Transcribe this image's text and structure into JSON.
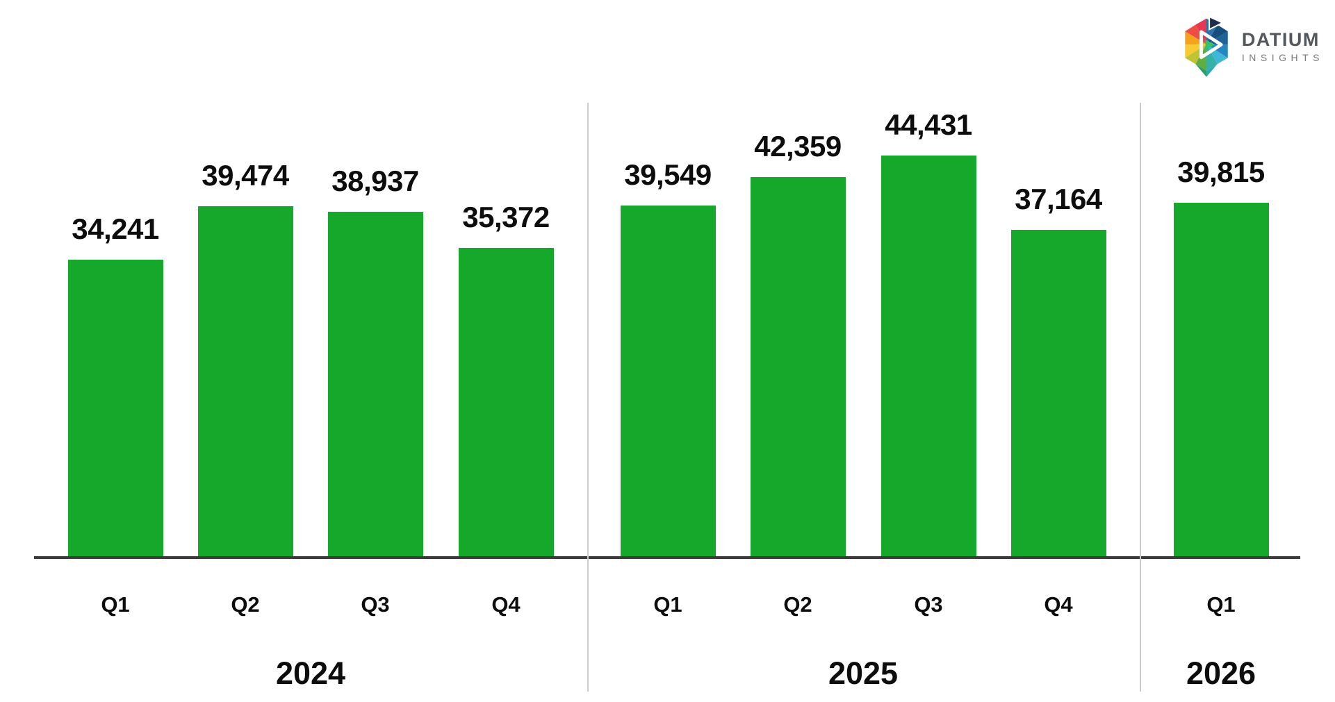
{
  "brand": {
    "name": "DATIUM",
    "tagline": "INSIGHTS",
    "name_color": "#53585C",
    "tagline_color": "#757B82"
  },
  "chart_data": {
    "type": "bar",
    "title": "",
    "xlabel": "",
    "ylabel": "",
    "grid": false,
    "legend": "none",
    "baseline_truncated": true,
    "categories": [
      "2024 Q1",
      "2024 Q2",
      "2024 Q3",
      "2024 Q4",
      "2025 Q1",
      "2025 Q2",
      "2025 Q3",
      "2025 Q4",
      "2026 Q1"
    ],
    "values": [
      34241,
      39474,
      38937,
      35372,
      39549,
      42359,
      44431,
      37164,
      39815
    ],
    "value_labels": [
      "34,241",
      "39,474",
      "38,937",
      "35,372",
      "39,549",
      "42,359",
      "44,431",
      "37,164",
      "39,815"
    ],
    "groups": [
      {
        "year": "2024",
        "quarters": [
          "Q1",
          "Q2",
          "Q3",
          "Q4"
        ],
        "values": [
          34241,
          39474,
          38937,
          35372
        ],
        "value_labels": [
          "34,241",
          "39,474",
          "38,937",
          "35,372"
        ]
      },
      {
        "year": "2025",
        "quarters": [
          "Q1",
          "Q2",
          "Q3",
          "Q4"
        ],
        "values": [
          39549,
          42359,
          44431,
          37164
        ],
        "value_labels": [
          "39,549",
          "42,359",
          "44,431",
          "37,164"
        ]
      },
      {
        "year": "2026",
        "quarters": [
          "Q1"
        ],
        "values": [
          39815
        ],
        "value_labels": [
          "39,815"
        ]
      }
    ],
    "bar_color": "#15A82B",
    "text_color": "#0D0D0D",
    "axis_color": "#3C3C3C",
    "divider_color": "#C9CBCC"
  }
}
